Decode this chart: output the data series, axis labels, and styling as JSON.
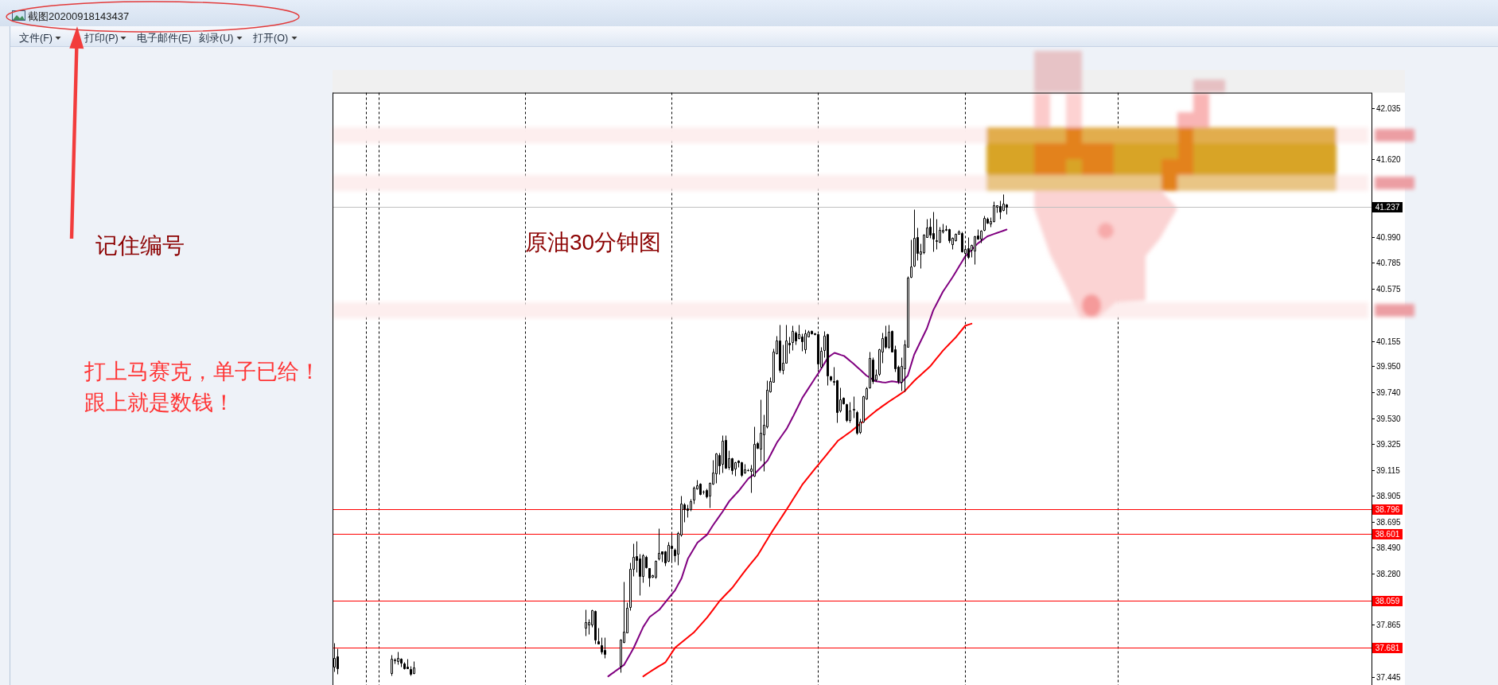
{
  "chart_data": {
    "type": "candlestick",
    "title": "原油30分钟图",
    "categories": [
      null,
      null,
      null,
      null,
      null,
      null,
      null,
      null,
      null,
      null,
      null,
      null,
      null,
      null,
      null,
      null,
      null,
      null,
      null,
      null,
      null,
      null,
      null,
      null,
      null,
      null,
      null,
      null,
      null,
      null,
      null,
      null,
      null,
      null,
      null,
      null,
      null,
      null,
      null,
      null,
      null,
      null,
      null,
      null,
      null,
      null,
      null,
      null,
      null,
      null,
      null,
      null,
      null,
      null,
      null,
      null,
      null,
      null,
      null,
      null,
      null,
      null,
      null,
      null,
      null,
      null,
      null,
      null,
      null,
      null,
      null,
      null,
      null,
      null,
      null,
      null,
      null,
      null,
      null,
      null,
      null,
      null,
      null,
      null,
      null,
      null,
      null,
      null,
      null,
      null,
      null,
      null,
      null,
      null,
      null,
      null,
      null,
      null,
      null,
      null,
      null,
      null,
      null,
      null,
      null,
      null,
      null,
      null,
      null,
      null,
      null,
      null,
      null,
      null,
      null,
      null,
      null,
      null,
      null,
      null,
      null,
      null,
      null,
      null,
      null,
      null,
      null,
      null,
      null,
      null,
      null,
      null,
      null,
      null,
      null,
      null,
      null,
      null,
      null,
      null,
      null,
      null,
      null,
      null,
      null,
      null,
      null,
      null,
      null,
      null,
      null,
      null,
      null,
      null,
      null,
      null,
      null,
      null,
      null,
      null,
      null,
      null,
      null,
      null,
      null,
      null,
      null,
      null,
      null,
      null,
      null,
      null,
      null,
      null,
      null,
      null,
      null,
      null,
      null,
      null,
      null,
      null,
      null,
      null,
      null,
      null,
      null,
      null,
      null,
      null,
      null,
      null,
      null,
      null,
      null,
      null,
      null,
      null,
      null,
      null,
      null,
      null,
      null,
      null,
      null,
      null,
      null,
      null,
      null,
      null,
      null,
      null,
      null,
      null,
      null,
      null,
      null,
      null,
      null,
      null,
      null,
      null,
      null,
      null,
      null,
      null,
      null,
      null,
      null,
      null,
      null,
      null,
      null,
      null,
      null,
      null,
      null,
      null,
      null,
      null,
      null,
      null,
      null,
      null,
      null,
      null,
      null,
      null,
      null,
      null,
      null,
      null,
      null,
      null,
      null,
      null,
      null,
      null,
      null,
      null,
      null,
      null,
      null,
      null,
      null,
      null,
      null,
      null,
      null,
      null,
      null,
      null,
      null,
      null,
      null,
      null,
      null,
      null,
      null,
      null,
      null,
      null,
      null,
      null,
      null,
      null,
      null,
      null,
      null,
      null,
      null,
      null,
      null,
      null,
      null,
      null,
      null,
      null,
      null,
      null,
      null,
      null,
      null,
      null,
      null,
      null,
      null,
      null,
      null,
      null,
      null,
      null,
      null,
      null,
      null,
      null,
      null,
      null,
      null,
      null,
      null,
      null,
      null,
      null,
      null,
      null
    ],
    "ohlc": [
      [
        37.528,
        37.722,
        37.49,
        37.596
      ],
      [
        37.612,
        37.676,
        37.469,
        37.515
      ],
      null,
      null,
      null,
      null,
      null,
      null,
      null,
      null,
      null,
      null,
      null,
      null,
      null,
      null,
      null,
      null,
      [
        37.475,
        37.627,
        37.458,
        37.591
      ],
      [
        37.579,
        37.596,
        37.553,
        37.583
      ],
      [
        37.57,
        37.65,
        37.549,
        37.6
      ],
      [
        37.593,
        37.6,
        37.528,
        37.557
      ],
      [
        37.553,
        37.564,
        37.507,
        37.517
      ],
      [
        37.528,
        37.589,
        37.517,
        37.517
      ],
      [
        37.511,
        37.532,
        37.458,
        37.469
      ],
      [
        37.477,
        37.574,
        37.469,
        37.521
      ],
      null,
      null,
      null,
      null,
      null,
      null,
      null,
      null,
      null,
      null,
      null,
      null,
      null,
      null,
      null,
      null,
      null,
      null,
      null,
      null,
      null,
      null,
      null,
      null,
      null,
      null,
      null,
      null,
      null,
      null,
      null,
      null,
      null,
      null,
      null,
      null,
      null,
      null,
      null,
      null,
      null,
      null,
      null,
      null,
      null,
      null,
      null,
      null,
      null,
      null,
      null,
      null,
      null,
      [
        37.839,
        37.991,
        37.779,
        37.885
      ],
      [
        37.87,
        37.912,
        37.79,
        37.885
      ],
      [
        37.87,
        37.991,
        37.849,
        37.986
      ],
      [
        37.976,
        37.986,
        37.712,
        37.744
      ],
      [
        37.733,
        37.839,
        37.712,
        37.712
      ],
      [
        37.701,
        37.765,
        37.628,
        37.649
      ],
      [
        37.663,
        37.765,
        37.6,
        37.628
      ],
      null,
      null,
      null,
      null,
      [
        37.533,
        37.75,
        37.48,
        37.744
      ],
      [
        37.727,
        38.212,
        37.723,
        37.813
      ],
      [
        37.801,
        38.05,
        37.801,
        38.003
      ],
      [
        38.008,
        38.366,
        37.98,
        38.314
      ],
      [
        38.32,
        38.521,
        38.261,
        38.415
      ],
      [
        38.419,
        38.542,
        38.293,
        38.388
      ],
      [
        38.402,
        38.44,
        38.107,
        38.261
      ],
      [
        38.261,
        38.44,
        38.208,
        38.423
      ],
      [
        38.415,
        38.423,
        38.324,
        38.331
      ],
      [
        38.324,
        38.324,
        38.176,
        38.246
      ],
      [
        38.25,
        38.271,
        38.246,
        38.265
      ],
      [
        38.25,
        38.388,
        38.24,
        38.383
      ],
      [
        38.402,
        38.645,
        38.388,
        38.445
      ],
      [
        38.455,
        38.461,
        38.377,
        38.44
      ],
      [
        38.455,
        38.466,
        38.341,
        38.371
      ],
      [
        38.381,
        38.535,
        38.377,
        38.51
      ],
      [
        38.504,
        38.599,
        38.371,
        38.483
      ],
      [
        38.472,
        38.483,
        38.377,
        38.423
      ],
      [
        38.436,
        38.62,
        38.352,
        38.603
      ],
      [
        38.592,
        38.905,
        38.578,
        38.846
      ],
      [
        38.835,
        38.852,
        38.694,
        38.799
      ],
      [
        38.803,
        38.837,
        38.732,
        38.793
      ],
      [
        38.795,
        38.879,
        38.784,
        38.862
      ],
      [
        38.873,
        38.985,
        38.841,
        38.972
      ],
      [
        38.964,
        39.036,
        38.958,
        38.993
      ],
      [
        39.004,
        39.01,
        38.915,
        38.922
      ],
      [
        38.94,
        38.951,
        38.922,
        38.942
      ],
      [
        38.951,
        38.964,
        38.888,
        38.9
      ],
      [
        38.905,
        39.015,
        38.81,
        39.01
      ],
      [
        39.006,
        39.196,
        39.0,
        39.095
      ],
      [
        39.084,
        39.253,
        39.01,
        39.247
      ],
      [
        39.232,
        39.253,
        39.078,
        39.154
      ],
      [
        39.162,
        39.397,
        39.09,
        39.348
      ],
      [
        39.354,
        39.397,
        39.126,
        39.133
      ],
      [
        39.137,
        39.274,
        39.116,
        39.211
      ],
      [
        39.211,
        39.215,
        39.078,
        39.112
      ],
      [
        39.126,
        39.186,
        39.069,
        39.179
      ],
      [
        39.19,
        39.196,
        39.137,
        39.175
      ],
      [
        39.179,
        39.186,
        39.063,
        39.074
      ],
      [
        39.091,
        39.162,
        39.084,
        39.122
      ],
      [
        39.11,
        39.127,
        39.105,
        39.114
      ],
      [
        39.105,
        39.158,
        38.93,
        39.126
      ],
      [
        39.069,
        39.464,
        39.063,
        39.327
      ],
      [
        39.333,
        39.342,
        39.285,
        39.295
      ],
      [
        39.285,
        39.686,
        39.19,
        39.416
      ],
      [
        39.401,
        39.559,
        39.105,
        39.475
      ],
      [
        39.464,
        39.838,
        39.454,
        39.76
      ],
      [
        39.749,
        39.865,
        39.739,
        39.834
      ],
      [
        39.827,
        40.097,
        39.823,
        40.07
      ],
      [
        40.055,
        40.197,
        40.049,
        40.161
      ],
      [
        40.161,
        40.287,
        39.901,
        39.918
      ],
      [
        39.922,
        40.129,
        39.886,
        39.981
      ],
      [
        39.981,
        40.287,
        39.977,
        40.161
      ],
      [
        40.14,
        40.192,
        40.055,
        40.125
      ],
      [
        40.146,
        40.277,
        40.083,
        40.235
      ],
      [
        40.224,
        40.235,
        40.129,
        40.161
      ],
      [
        40.176,
        40.287,
        40.171,
        40.209
      ],
      [
        40.192,
        40.213,
        40.076,
        40.154
      ],
      [
        40.087,
        40.245,
        40.055,
        40.213
      ],
      [
        40.192,
        40.239,
        40.188,
        40.228
      ],
      [
        40.234,
        40.239,
        40.209,
        40.213
      ],
      [
        40.217,
        40.222,
        40.205,
        40.209
      ],
      [
        40.209,
        40.213,
        39.928,
        39.971
      ],
      [
        39.949,
        40.104,
        39.939,
        40.076
      ],
      [
        40.082,
        40.234,
        40.023,
        40.196
      ],
      [
        40.209,
        40.213,
        39.802,
        39.876
      ],
      [
        39.871,
        39.876,
        39.833,
        39.844
      ],
      [
        39.833,
        39.949,
        39.802,
        39.823
      ],
      [
        39.838,
        39.844,
        39.496,
        39.584
      ],
      [
        39.591,
        39.781,
        39.584,
        39.681
      ],
      [
        39.696,
        39.702,
        39.643,
        39.654
      ],
      [
        39.643,
        39.65,
        39.506,
        39.517
      ],
      [
        39.517,
        39.664,
        39.496,
        39.591
      ],
      [
        39.601,
        39.707,
        39.538,
        39.605
      ],
      [
        39.58,
        39.591,
        39.401,
        39.411
      ],
      [
        39.422,
        39.527,
        39.407,
        39.506
      ],
      [
        39.506,
        39.717,
        39.496,
        39.707
      ],
      [
        39.692,
        39.787,
        39.686,
        39.776
      ],
      [
        39.781,
        40.066,
        39.774,
        40.017
      ],
      [
        40.006,
        40.023,
        39.812,
        39.833
      ],
      [
        39.844,
        39.928,
        39.833,
        39.88
      ],
      [
        39.886,
        40.091,
        39.876,
        40.087
      ],
      [
        40.07,
        40.224,
        39.981,
        40.175
      ],
      [
        40.188,
        40.277,
        40.097,
        40.108
      ],
      [
        40.104,
        40.287,
        40.097,
        40.228
      ],
      [
        40.234,
        40.239,
        40.066,
        40.07
      ],
      [
        40.087,
        40.118,
        39.907,
        39.935
      ],
      [
        39.949,
        39.96,
        39.812,
        39.833
      ],
      [
        39.823,
        40.023,
        39.753,
        39.956
      ],
      [
        39.935,
        40.167,
        39.749,
        40.125
      ],
      [
        40.108,
        40.678,
        40.104,
        40.663
      ],
      [
        40.673,
        40.973,
        40.667,
        40.758
      ],
      [
        40.762,
        41.216,
        40.752,
        40.988
      ],
      [
        40.994,
        41.068,
        40.804,
        40.863
      ],
      [
        40.857,
        40.942,
        40.741,
        40.878
      ],
      [
        40.868,
        41.016,
        40.857,
        41.009
      ],
      [
        40.994,
        41.142,
        40.99,
        41.068
      ],
      [
        41.079,
        41.146,
        40.984,
        41.011
      ],
      [
        41.026,
        41.195,
        40.878,
        40.977
      ],
      [
        40.963,
        41.142,
        40.899,
        40.967
      ],
      [
        40.956,
        41.079,
        40.948,
        41.051
      ],
      [
        41.037,
        41.1,
        41.026,
        41.051
      ],
      [
        41.047,
        41.089,
        41.041,
        41.058
      ],
      [
        41.058,
        41.062,
        40.948,
        40.967
      ],
      [
        40.935,
        40.994,
        40.899,
        40.984
      ],
      [
        40.967,
        41.026,
        40.963,
        41.02
      ],
      [
        41.02,
        41.053,
        41.016,
        41.037
      ],
      [
        41.026,
        41.037,
        40.868,
        40.874
      ],
      [
        40.863,
        40.931,
        40.773,
        40.899
      ],
      [
        40.904,
        40.99,
        40.821,
        40.83
      ],
      [
        40.889,
        40.935,
        40.83,
        40.931
      ],
      [
        40.885,
        41.005,
        40.773,
        41.001
      ],
      [
        41.005,
        41.058,
        40.973,
        40.977
      ],
      [
        40.98,
        41.047,
        40.948,
        41.041
      ],
      [
        41.047,
        41.163,
        41.041,
        41.146
      ],
      [
        41.138,
        41.153,
        41.1,
        41.11
      ],
      [
        41.104,
        41.153,
        41.075,
        41.121
      ],
      [
        41.121,
        41.279,
        41.117,
        41.248
      ],
      [
        41.237,
        41.252,
        41.189,
        41.248
      ],
      [
        41.241,
        41.29,
        41.138,
        41.195
      ],
      [
        41.21,
        41.336,
        41.201,
        41.265
      ],
      [
        41.258,
        41.265,
        41.18,
        41.237
      ],
      null,
      null,
      null,
      null,
      null,
      null,
      null,
      null,
      null,
      null,
      null,
      null,
      null,
      null,
      null,
      null,
      null,
      null,
      null,
      null,
      null,
      null,
      null,
      null,
      null,
      null,
      null,
      null,
      null,
      null,
      null,
      null,
      null,
      null,
      null,
      null,
      null,
      null,
      null,
      null,
      null,
      null,
      null,
      null,
      null,
      null,
      null,
      null,
      null,
      null,
      null,
      null,
      null,
      null,
      null,
      null,
      null,
      null,
      null,
      null,
      null,
      null,
      null,
      null,
      null,
      null,
      null,
      null,
      null,
      null,
      null,
      null,
      null,
      null,
      null,
      null,
      null,
      null,
      null,
      null,
      null,
      null,
      null,
      null,
      null,
      null,
      null,
      null,
      null,
      null,
      null,
      null,
      null,
      null,
      null,
      null,
      null,
      null,
      null,
      null,
      null,
      null,
      null,
      null,
      null,
      null,
      null,
      null,
      null,
      null,
      null,
      null,
      null,
      null
    ],
    "series": [
      {
        "type": "line",
        "color": "#800080",
        "values": [
          null,
          null,
          null,
          null,
          null,
          null,
          null,
          null,
          null,
          null,
          null,
          null,
          null,
          null,
          null,
          null,
          null,
          null,
          null,
          null,
          null,
          null,
          null,
          null,
          null,
          null,
          null,
          null,
          null,
          null,
          null,
          null,
          null,
          null,
          null,
          null,
          null,
          null,
          null,
          null,
          null,
          null,
          null,
          null,
          null,
          null,
          null,
          null,
          null,
          null,
          null,
          null,
          null,
          null,
          null,
          null,
          null,
          null,
          null,
          null,
          null,
          null,
          null,
          null,
          null,
          null,
          null,
          null,
          null,
          null,
          null,
          null,
          null,
          null,
          null,
          null,
          null,
          null,
          null,
          null,
          null,
          null,
          null,
          null,
          null,
          null,
          37.45,
          37.469,
          37.487,
          37.506,
          37.524,
          37.543,
          37.589,
          37.634,
          37.68,
          37.736,
          37.793,
          37.849,
          37.889,
          37.929,
          37.948,
          37.967,
          37.986,
          38.018,
          38.05,
          38.082,
          38.113,
          38.145,
          38.193,
          38.24,
          38.319,
          38.398,
          38.442,
          38.485,
          38.529,
          38.55,
          38.571,
          38.592,
          38.633,
          38.673,
          38.709,
          38.746,
          38.782,
          38.823,
          38.863,
          38.891,
          38.919,
          38.947,
          38.98,
          39.013,
          39.046,
          39.065,
          39.084,
          39.111,
          39.137,
          39.164,
          39.19,
          39.239,
          39.289,
          39.338,
          39.374,
          39.411,
          39.447,
          39.496,
          39.545,
          39.597,
          39.648,
          39.7,
          39.739,
          39.779,
          39.818,
          39.858,
          39.897,
          39.939,
          39.981,
          40.023,
          40.041,
          40.059,
          40.051,
          40.042,
          40.034,
          40.013,
          39.992,
          39.971,
          39.947,
          39.924,
          39.9,
          39.876,
          39.86,
          39.845,
          39.829,
          39.826,
          39.822,
          39.819,
          39.824,
          39.829,
          39.826,
          39.822,
          39.819,
          39.848,
          39.876,
          39.96,
          40.044,
          40.097,
          40.15,
          40.203,
          40.256,
          40.33,
          40.403,
          40.452,
          40.502,
          40.551,
          40.59,
          40.628,
          40.667,
          40.709,
          40.752,
          40.794,
          40.836,
          40.863,
          40.889,
          40.916,
          40.942,
          40.961,
          40.98,
          40.999,
          41.008,
          41.017,
          41.026,
          41.035,
          41.044,
          41.053,
          null,
          null,
          null,
          null,
          null,
          null,
          null,
          null,
          null,
          null,
          null,
          null,
          null,
          null,
          null,
          null,
          null,
          null,
          null,
          null,
          null,
          null,
          null,
          null,
          null,
          null,
          null,
          null,
          null,
          null,
          null,
          null,
          null,
          null,
          null,
          null,
          null,
          null,
          null,
          null,
          null,
          null,
          null,
          null,
          null,
          null,
          null,
          null,
          null,
          null,
          null,
          null,
          null,
          null,
          null,
          null,
          null,
          null,
          null,
          null,
          null,
          null,
          null,
          null,
          null,
          null,
          null,
          null,
          null,
          null,
          null,
          null,
          null,
          null,
          null,
          null,
          null,
          null,
          null,
          null,
          null,
          null,
          null,
          null,
          null,
          null,
          null,
          null,
          null,
          null,
          null,
          null,
          null,
          null,
          null,
          null,
          null,
          null,
          null,
          null,
          null,
          null,
          null,
          null,
          null,
          null,
          null,
          null,
          null,
          null,
          null,
          null,
          null,
          null
        ]
      },
      {
        "type": "line",
        "color": "#ff0000",
        "values": [
          null,
          null,
          null,
          null,
          null,
          null,
          null,
          null,
          null,
          null,
          null,
          null,
          null,
          null,
          null,
          null,
          null,
          null,
          null,
          null,
          null,
          null,
          null,
          null,
          null,
          null,
          null,
          null,
          null,
          null,
          null,
          null,
          null,
          null,
          null,
          null,
          null,
          null,
          null,
          null,
          null,
          null,
          null,
          null,
          null,
          null,
          null,
          null,
          null,
          null,
          null,
          null,
          null,
          null,
          null,
          null,
          null,
          null,
          null,
          null,
          null,
          null,
          null,
          null,
          null,
          null,
          null,
          null,
          null,
          null,
          null,
          null,
          null,
          null,
          null,
          null,
          null,
          null,
          null,
          null,
          null,
          null,
          null,
          null,
          null,
          null,
          null,
          null,
          null,
          null,
          null,
          null,
          null,
          null,
          null,
          null,
          null,
          37.45,
          37.467,
          37.484,
          37.501,
          37.517,
          37.533,
          37.548,
          37.564,
          37.603,
          37.642,
          37.681,
          37.702,
          37.723,
          37.744,
          37.765,
          37.786,
          37.807,
          37.836,
          37.865,
          37.894,
          37.923,
          37.957,
          37.991,
          38.025,
          38.059,
          38.086,
          38.113,
          38.139,
          38.166,
          38.2,
          38.235,
          38.269,
          38.303,
          38.335,
          38.367,
          38.398,
          38.43,
          38.473,
          38.516,
          38.558,
          38.601,
          38.64,
          38.679,
          38.718,
          38.757,
          38.796,
          38.837,
          38.878,
          38.918,
          38.959,
          39.0,
          39.032,
          39.063,
          39.095,
          39.127,
          39.158,
          39.19,
          39.221,
          39.253,
          39.285,
          39.316,
          39.348,
          39.367,
          39.385,
          39.404,
          39.422,
          39.443,
          39.464,
          39.485,
          39.506,
          39.527,
          39.549,
          39.57,
          39.591,
          39.609,
          39.628,
          39.646,
          39.664,
          39.681,
          39.698,
          39.715,
          39.732,
          39.749,
          39.777,
          39.805,
          39.833,
          39.856,
          39.879,
          39.903,
          39.926,
          39.949,
          39.981,
          40.013,
          40.044,
          40.076,
          40.103,
          40.129,
          40.156,
          40.182,
          40.214,
          40.245,
          40.277,
          40.286,
          40.294,
          null,
          null,
          null,
          null,
          null,
          null,
          null,
          null,
          null,
          null,
          null,
          null,
          null,
          null,
          null,
          null,
          null,
          null,
          null,
          null,
          null,
          null,
          null,
          null,
          null,
          null,
          null,
          null,
          null,
          null,
          null,
          null,
          null,
          null,
          null,
          null,
          null,
          null,
          null,
          null,
          null,
          null,
          null,
          null,
          null,
          null,
          null,
          null,
          null,
          null,
          null,
          null,
          null,
          null,
          null,
          null,
          null,
          null,
          null,
          null,
          null,
          null,
          null,
          null,
          null,
          null,
          null,
          null,
          null,
          null,
          null,
          null,
          null,
          null,
          null,
          null,
          null,
          null,
          null,
          null,
          null,
          null,
          null,
          null,
          null,
          null,
          null,
          null,
          null,
          null,
          null,
          null,
          null,
          null,
          null,
          null,
          null,
          null,
          null,
          null,
          null,
          null,
          null,
          null,
          null,
          null,
          null,
          null,
          null,
          null,
          null,
          null,
          null,
          null,
          null,
          null,
          null,
          null,
          null,
          null,
          null,
          null,
          null,
          null,
          null
        ]
      }
    ],
    "ylim": [
      37.38,
      42.157
    ],
    "yticks": [
      42.035,
      {
        "value": 41.62,
        "label": "41.620"
      },
      {
        "value": 41.2,
        "label": null
      },
      {
        "value": 40.99,
        "label": "40.990"
      },
      40.785,
      40.575,
      40.155,
      {
        "value": 39.95,
        "label": "39.950"
      },
      {
        "value": 39.74,
        "label": "39.740"
      },
      {
        "value": 39.53,
        "label": "39.530"
      },
      39.325,
      39.115,
      38.905,
      38.695,
      {
        "value": 38.49,
        "label": "38.490"
      },
      {
        "value": 38.28,
        "label": "38.280"
      },
      37.865,
      {
        "value": 37.655,
        "label": null
      },
      37.445
    ],
    "tick_labels": "y",
    "ref_lines": [
      {
        "axis": "y",
        "value": 41.237,
        "label": "41.237",
        "color": "#c0c0c0"
      },
      {
        "axis": "y",
        "value": 38.796,
        "label": "38.796",
        "color": "#ff0000"
      },
      {
        "axis": "y",
        "value": 38.601,
        "label": "38.601",
        "color": "#ff0000"
      },
      {
        "axis": "y",
        "value": 38.059,
        "label": "38.059",
        "color": "#ff0000"
      },
      {
        "axis": "y",
        "value": 37.681,
        "label": "37.681",
        "color": "#ff0000"
      }
    ],
    "annotations": [
      "截图20200918143437",
      "文件(F)",
      "打印(P)",
      "电子邮件(E)",
      "刻录(U)",
      "打开(O)",
      "记住编号",
      "打上马赛克，单子已给！",
      "跟上就是数钱！"
    ]
  }
}
